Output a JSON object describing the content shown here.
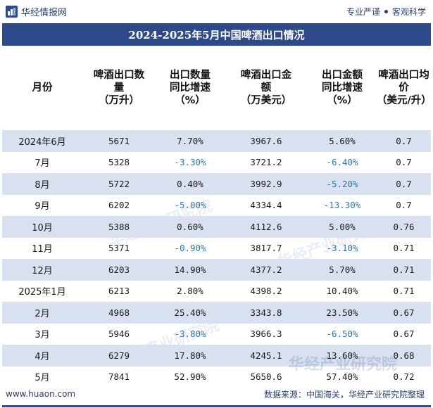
{
  "brand": {
    "name": "华经情报网"
  },
  "tagline": {
    "left": "专业严谨",
    "right": "客观科学"
  },
  "title": "2024-2025年5月中国啤酒出口情况",
  "columns": [
    "月份",
    "啤酒出口数量（万升）",
    "出口数量同比增速（%）",
    "啤酒出口金额（万美元）",
    "出口金额同比增速（%）",
    "啤酒出口均价（美元/升）"
  ],
  "column_lines": [
    [
      "月份"
    ],
    [
      "啤酒出口数",
      "量",
      "（万升）"
    ],
    [
      "出口数量",
      "同比增速",
      "（%）"
    ],
    [
      "啤酒出口金",
      "额",
      "（万美元）"
    ],
    [
      "出口金额",
      "同比增速",
      "（%）"
    ],
    [
      "啤酒出口均",
      "价",
      "（美元/升）"
    ]
  ],
  "rows": [
    [
      "2024年6月",
      "5671",
      "7.70%",
      "3967.6",
      "5.60%",
      "0.7"
    ],
    [
      "7月",
      "5328",
      "-3.30%",
      "3721.2",
      "-6.40%",
      "0.7"
    ],
    [
      "8月",
      "5722",
      "0.40%",
      "3992.9",
      "-5.20%",
      "0.7"
    ],
    [
      "9月",
      "6202",
      "-5.00%",
      "4334.4",
      "-13.30%",
      "0.7"
    ],
    [
      "10月",
      "5388",
      "0.60%",
      "4112.6",
      "5.00%",
      "0.76"
    ],
    [
      "11月",
      "5371",
      "-0.90%",
      "3817.7",
      "-3.10%",
      "0.71"
    ],
    [
      "12月",
      "6203",
      "14.90%",
      "4377.2",
      "5.70%",
      "0.71"
    ],
    [
      "2025年1月",
      "6213",
      "2.80%",
      "4398.2",
      "10.40%",
      "0.71"
    ],
    [
      "2月",
      "4968",
      "25.40%",
      "3343.8",
      "23.50%",
      "0.67"
    ],
    [
      "3月",
      "5946",
      "-3.80%",
      "3966.3",
      "-6.50%",
      "0.67"
    ],
    [
      "4月",
      "6279",
      "17.80%",
      "4245.1",
      "13.60%",
      "0.68"
    ],
    [
      "5月",
      "7841",
      "52.90%",
      "5650.6",
      "57.40%",
      "0.72"
    ]
  ],
  "footer": {
    "website": "www.huaon.com",
    "source": "数据来源：中国海关，华经产业研究院整理"
  },
  "watermark": {
    "text": "华经产业研究院"
  },
  "colors": {
    "header_bg": "#2e4a8a",
    "row_shade": "#d9e1f0",
    "negative": "#2d77b3"
  }
}
